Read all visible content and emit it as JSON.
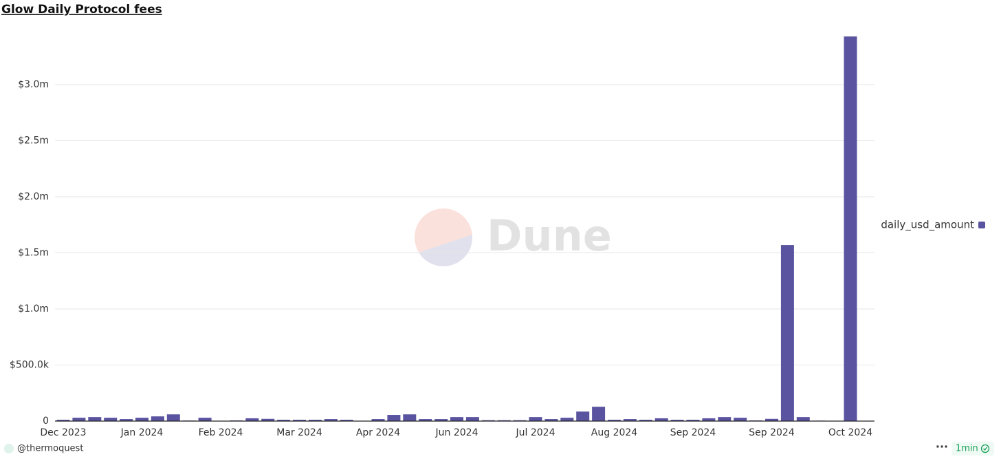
{
  "chart_data": {
    "type": "bar",
    "title": "Glow Daily Protocol fees",
    "categories": [
      "Dec 2023",
      null,
      null,
      null,
      null,
      "Jan 2024",
      null,
      null,
      null,
      null,
      "Feb 2024",
      null,
      null,
      null,
      null,
      "Mar 2024",
      null,
      null,
      null,
      null,
      "Apr 2024",
      null,
      null,
      null,
      null,
      "Jun 2024",
      null,
      null,
      null,
      null,
      "Jul 2024",
      null,
      null,
      null,
      null,
      "Aug 2024",
      null,
      null,
      null,
      null,
      "Sep 2024",
      null,
      null,
      null,
      null,
      "Sep 2024",
      null,
      null,
      null,
      null,
      "Oct 2024"
    ],
    "series": [
      {
        "name": "daily_usd_amount",
        "color": "#5a54a0",
        "values": [
          12000,
          30000,
          36000,
          30000,
          18000,
          30000,
          42000,
          60000,
          5000,
          30000,
          2000,
          6000,
          25000,
          20000,
          12000,
          12000,
          12000,
          18000,
          12000,
          2000,
          18000,
          55000,
          60000,
          18000,
          18000,
          36000,
          36000,
          8000,
          8000,
          8000,
          36000,
          18000,
          30000,
          85000,
          128000,
          12000,
          18000,
          12000,
          25000,
          12000,
          12000,
          25000,
          36000,
          30000,
          6000,
          20000,
          1570000,
          36000,
          4000,
          2000,
          3430000
        ]
      }
    ],
    "ylim": [
      0,
      3500000
    ],
    "yticks": [
      0,
      {
        "value": 500000,
        "label": "$500.0k"
      },
      {
        "value": 1000000,
        "label": "$1.0m"
      },
      {
        "value": 1500000,
        "label": "$1.5m"
      },
      {
        "value": 2000000,
        "label": "$2.0m"
      },
      {
        "value": 2500000,
        "label": "$2.5m"
      },
      {
        "value": 3000000,
        "label": "$3.0m"
      }
    ],
    "grid": true,
    "legend": "right",
    "watermark": "Dune",
    "author": "@thermoquest",
    "refresh": "1min"
  }
}
